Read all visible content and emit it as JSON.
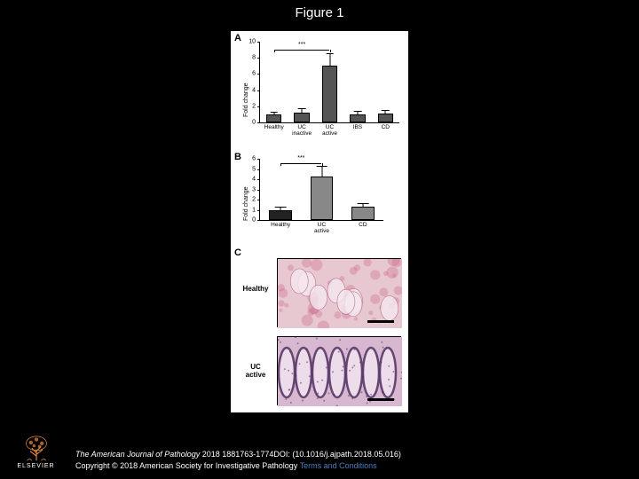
{
  "title": "Figure 1",
  "citation": {
    "journal": "The American Journal of Pathology",
    "details": " 2018 1881763-1774DOI: (10.1016/j.ajpath.2018.05.016)"
  },
  "copyright": {
    "text": "Copyright © 2018 American Society for Investigative Pathology ",
    "terms": "Terms and Conditions"
  },
  "logo": {
    "text": "ELSEVIER",
    "color": "#e98b3f"
  },
  "panelA": {
    "label": "A",
    "ylabel": "Fold change",
    "ymin": 0,
    "ymax": 10,
    "ytick_step": 2,
    "categories": [
      "Healthy",
      "UC\ninactive",
      "UC\nactive",
      "IBS",
      "CD"
    ],
    "values": [
      1.0,
      1.2,
      7.0,
      1.0,
      1.1
    ],
    "errors": [
      0.2,
      0.4,
      1.5,
      0.3,
      0.3
    ],
    "bar_color": "#555555",
    "sig": {
      "from": 0,
      "to": 2,
      "label": "***",
      "y": 9.0
    }
  },
  "panelB": {
    "label": "B",
    "ylabel": "Fold change",
    "ymin": 0,
    "ymax": 6,
    "ytick_step": 1,
    "categories": [
      "Healthy",
      "UC\nactive",
      "CD"
    ],
    "values": [
      1.0,
      4.3,
      1.3
    ],
    "errors": [
      0.2,
      0.9,
      0.3
    ],
    "bar_color_healthy": "#222222",
    "bar_color_other": "#888888",
    "sig": {
      "from": 0,
      "to": 1,
      "label": "***",
      "y": 5.6
    }
  },
  "panelC": {
    "label": "C",
    "images": [
      {
        "label": "Healthy",
        "tint": "#e8c8d0"
      },
      {
        "label": "UC\nactive",
        "tint": "#d8b8d0"
      }
    ]
  }
}
